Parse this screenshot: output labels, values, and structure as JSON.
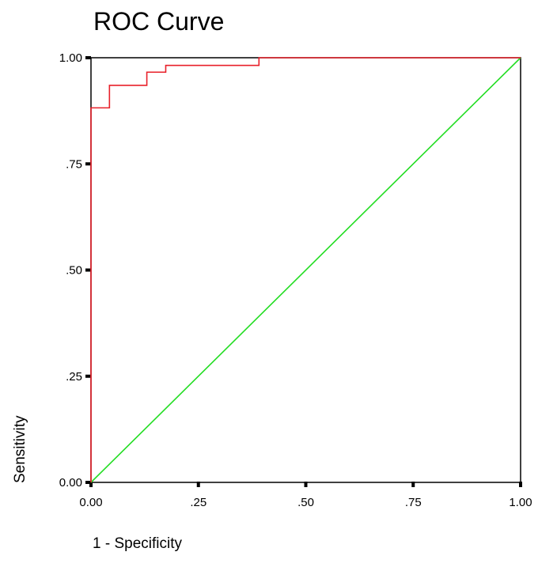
{
  "chart_data": {
    "type": "line",
    "title": "ROC Curve",
    "xlabel": "1 - Specificity",
    "ylabel": "Sensitivity",
    "xlim": [
      0,
      1
    ],
    "ylim": [
      0,
      1
    ],
    "x_ticks": [
      0,
      0.25,
      0.5,
      0.75,
      1
    ],
    "y_ticks": [
      0,
      0.25,
      0.5,
      0.75,
      1
    ],
    "x_tick_labels": [
      "0.00",
      ".25",
      ".50",
      ".75",
      "1.00"
    ],
    "y_tick_labels": [
      "0.00",
      ".25",
      ".50",
      ".75",
      "1.00"
    ],
    "grid": false,
    "series": [
      {
        "color": "#e8202a",
        "step": true,
        "points": [
          [
            0,
            0
          ],
          [
            0,
            0.882
          ],
          [
            0.043,
            0.882
          ],
          [
            0.043,
            0.935
          ],
          [
            0.13,
            0.935
          ],
          [
            0.13,
            0.966
          ],
          [
            0.174,
            0.966
          ],
          [
            0.174,
            0.982
          ],
          [
            0.391,
            0.982
          ],
          [
            0.391,
            1.0
          ],
          [
            1.0,
            1.0
          ]
        ]
      },
      {
        "color": "#22dd22",
        "step": false,
        "points": [
          [
            0,
            0
          ],
          [
            1,
            1
          ]
        ]
      }
    ]
  }
}
